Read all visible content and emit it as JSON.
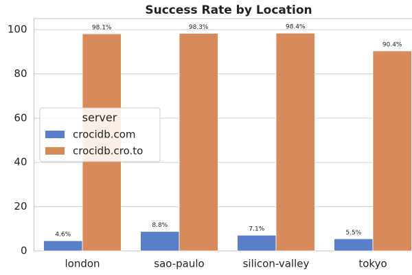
{
  "chart_data": {
    "type": "bar",
    "title": "Success Rate by Location",
    "categories": [
      "london",
      "sao-paulo",
      "silicon-valley",
      "tokyo"
    ],
    "legend_title": "server",
    "legend": "center left",
    "grid": true,
    "series": [
      {
        "name": "crocidb.com",
        "color": "#5a7fc9",
        "values": [
          4.6,
          8.8,
          7.1,
          5.5
        ],
        "value_labels": [
          "4.6%",
          "8.8%",
          "7.1%",
          "5.5%"
        ]
      },
      {
        "name": "crocidb.cro.to",
        "color": "#d98a5b",
        "values": [
          98.1,
          98.3,
          98.4,
          90.4
        ],
        "value_labels": [
          "98.1%",
          "98.3%",
          "98.4%",
          "90.4%"
        ]
      }
    ],
    "ylim": [
      0,
      105
    ],
    "yticks": [
      0,
      20,
      40,
      60,
      80,
      100
    ]
  }
}
